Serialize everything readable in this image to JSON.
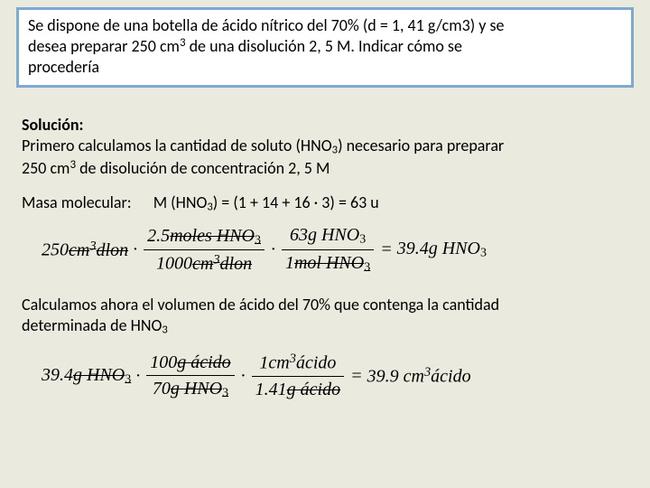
{
  "problem": {
    "line1": "Se dispone de una botella de ácido nítrico del 70% (d = 1, 41 g/cm3) y se",
    "line2": "desea preparar 250 cm",
    "line2exp": "3",
    "line2b": " de una disolución 2, 5 M. Indicar cómo se",
    "line3": "procedería"
  },
  "sol": {
    "title": "Solución:",
    "p1a": "Primero calculamos la cantidad de soluto (HNO",
    "p1sub": "3",
    "p1b": ") necesario para preparar",
    "p1c": "250 cm",
    "p1exp": "3",
    "p1d": " de disolución de concentración 2, 5 M",
    "masa_label": "Masa molecular:",
    "masa_val_a": "M (HNO",
    "masa_val_sub": "3",
    "masa_val_b": ") = (1 + 14 + 16 · 3) = 63 u",
    "p2a": "Calculamos ahora el volumen de ácido del 70% que contenga la cantidad",
    "p2b": "determinada de HNO",
    "p2sub": "3"
  },
  "eq1": {
    "lead_val": "250",
    "lead_unit": "cm",
    "lead_dlon": "dlon",
    "f1_num_val": "2.5",
    "f1_num_unit": "moles HNO",
    "f1_num_sub": "3",
    "f1_den_val": "1000",
    "f1_den_unit": "cm",
    "f1_den_dlon": "dlon",
    "f2_num_val": "63",
    "f2_num_unit": "g HNO",
    "f2_num_sub": "3",
    "f2_den_val": "1",
    "f2_den_unit": "mol HNO",
    "f2_den_sub": "3",
    "result_val": "39.4",
    "result_unit": "g  HNO",
    "result_sub": "3"
  },
  "eq2": {
    "lead_val": "39.4",
    "lead_unit1": "g",
    "lead_unit2": "HNO",
    "lead_sub": "3",
    "f1_num_val": "100",
    "f1_num_unit": "g ácido",
    "f1_den_val": "70",
    "f1_den_unit": "g",
    "f1_den_unit2": "HNO",
    "f1_den_sub": "3",
    "f2_num_val": "1",
    "f2_num_unit": "cm",
    "f2_num_unit2": "ácido",
    "f2_den_val": "1.41",
    "f2_den_unit": "g ácido",
    "result_val": "39.9",
    "result_unit1": "cm",
    "result_unit2": "ácido"
  }
}
